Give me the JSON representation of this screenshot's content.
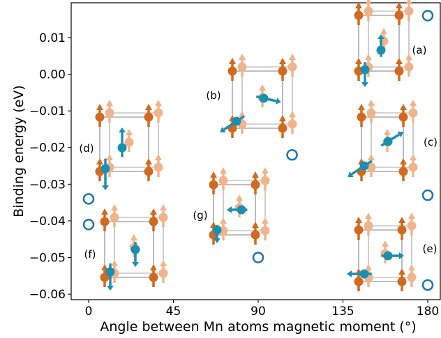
{
  "chart_data": {
    "type": "scatter",
    "xlabel": "Angle between Mn atoms magnetic moment (°)",
    "ylabel": "Binding energy (eV)",
    "xlim": [
      -8,
      185
    ],
    "ylim": [
      -0.0615,
      0.0195
    ],
    "xticks": [
      0,
      45,
      90,
      135,
      180
    ],
    "yticks": [
      0.01,
      0.0,
      -0.01,
      -0.02,
      -0.03,
      -0.04,
      -0.05,
      -0.06
    ],
    "ytick_labels": [
      "0.01",
      "0.00",
      "−0.01",
      "−0.02",
      "−0.03",
      "−0.04",
      "−0.05",
      "−0.06"
    ],
    "grid": false,
    "marker": "open-circle",
    "marker_color": "#1f77b4",
    "points": [
      {
        "x": 0,
        "y": -0.034
      },
      {
        "x": 0,
        "y": -0.041
      },
      {
        "x": 90,
        "y": -0.05
      },
      {
        "x": 108,
        "y": -0.022
      },
      {
        "x": 180,
        "y": 0.016
      },
      {
        "x": 180,
        "y": -0.033
      },
      {
        "x": 180,
        "y": -0.0575
      }
    ],
    "panel_labels": [
      "(a)",
      "(b)",
      "(c)",
      "(d)",
      "(e)",
      "(f)",
      "(g)"
    ],
    "colors": {
      "mn_atom": "#d2691e",
      "mn_atom_faded": "#f0b48c",
      "impurity_atom": "#1a90b0",
      "frame": "#555555"
    }
  }
}
